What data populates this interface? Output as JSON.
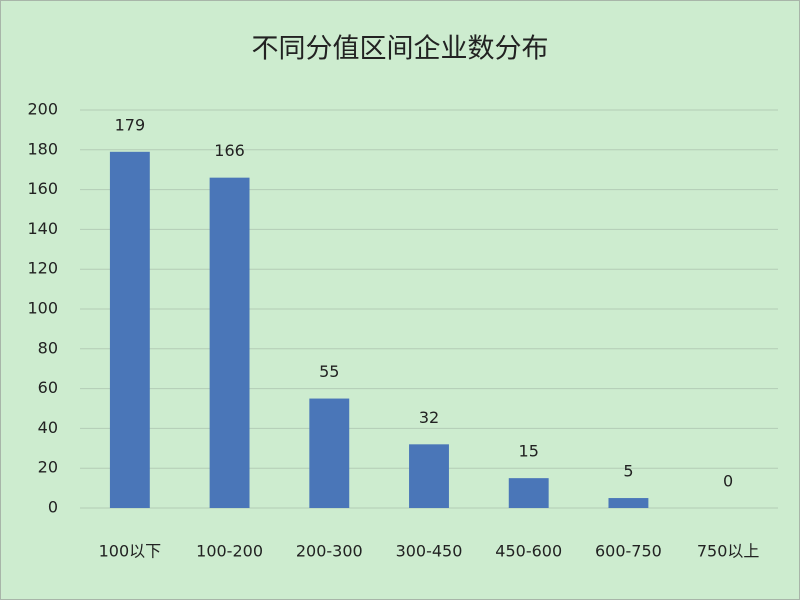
{
  "chart_data": {
    "type": "bar",
    "title": "不同分值区间企业数分布",
    "categories": [
      "100以下",
      "100-200",
      "200-300",
      "300-450",
      "450-600",
      "600-750",
      "750以上"
    ],
    "values": [
      179,
      166,
      55,
      32,
      15,
      5,
      0
    ],
    "color": "#4a76b8",
    "ylim": [
      0,
      200
    ],
    "yticks": [
      0,
      20,
      40,
      60,
      80,
      100,
      120,
      140,
      160,
      180,
      200
    ],
    "grid": true
  }
}
